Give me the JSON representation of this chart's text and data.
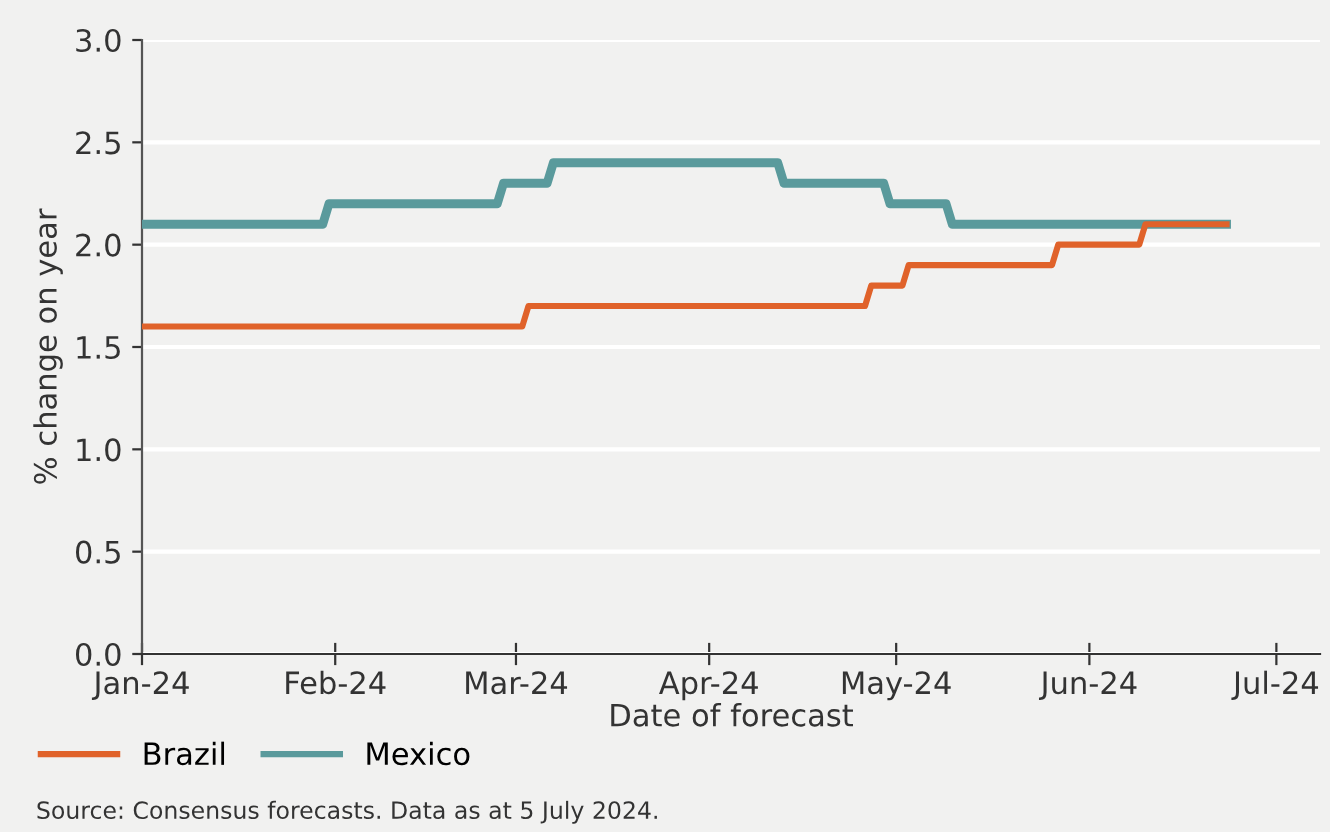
{
  "chart_data": {
    "type": "line",
    "xlabel": "Date of forecast",
    "ylabel": "% change on year",
    "annotations": [
      "Source: Consensus forecasts. Data as at 5 July 2024."
    ],
    "xlim": [
      "2024-01-01",
      "2024-07-08"
    ],
    "xticks": [
      {
        "value": "2024-01-01",
        "label": "Jan-24"
      },
      {
        "value": "2024-02-01",
        "label": "Feb-24"
      },
      {
        "value": "2024-03-01",
        "label": "Mar-24"
      },
      {
        "value": "2024-04-01",
        "label": "Apr-24"
      },
      {
        "value": "2024-05-01",
        "label": "May-24"
      },
      {
        "value": "2024-06-01",
        "label": "Jun-24"
      },
      {
        "value": "2024-07-01",
        "label": "Jul-24"
      }
    ],
    "ylim": [
      0,
      3.0
    ],
    "yticks": [
      {
        "value": 0,
        "label": "0.0"
      },
      0.5,
      {
        "value": 1,
        "label": "1.0"
      },
      1.5,
      {
        "value": 2,
        "label": "2.0"
      },
      2.5,
      {
        "value": 3,
        "label": "3.0"
      }
    ],
    "grid": "y",
    "legend": "bottom left",
    "line_style": "solid",
    "marker": "none",
    "series": [
      {
        "name": "Brazil",
        "color": "#e0622a",
        "x": [
          "2024-01-01",
          "2024-03-02",
          "2024-03-03",
          "2024-04-26",
          "2024-04-27",
          "2024-05-02",
          "2024-05-03",
          "2024-05-26",
          "2024-05-27",
          "2024-06-09",
          "2024-06-10",
          "2024-06-23"
        ],
        "values": [
          1.6,
          1.6,
          1.7,
          1.7,
          1.8,
          1.8,
          1.9,
          1.9,
          2.0,
          2.0,
          2.1,
          2.1
        ]
      },
      {
        "name": "Mexico",
        "color": "#5a9a9c",
        "x": [
          "2024-01-01",
          "2024-01-30",
          "2024-01-31",
          "2024-02-27",
          "2024-02-28",
          "2024-03-06",
          "2024-03-07",
          "2024-04-12",
          "2024-04-13",
          "2024-04-29",
          "2024-04-30",
          "2024-05-09",
          "2024-05-10",
          "2024-06-23"
        ],
        "values": [
          2.1,
          2.1,
          2.2,
          2.2,
          2.3,
          2.3,
          2.4,
          2.4,
          2.3,
          2.3,
          2.2,
          2.2,
          2.1,
          2.1
        ]
      }
    ]
  }
}
